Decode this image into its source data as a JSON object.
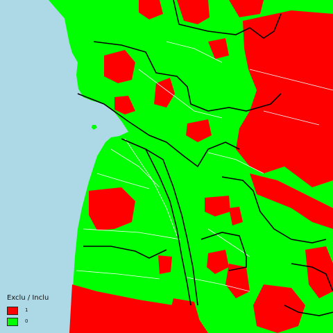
{
  "legend": {
    "title": "Exclu / Inclu",
    "items": [
      {
        "label": "1",
        "color": "#ff0000"
      },
      {
        "label": "0",
        "color": "#00ff00"
      }
    ]
  },
  "colors": {
    "sea": "#add8e6",
    "excluded": "#ff0000",
    "included": "#00ff00",
    "commune_border": "#ffffff",
    "district_border": "#000000"
  }
}
